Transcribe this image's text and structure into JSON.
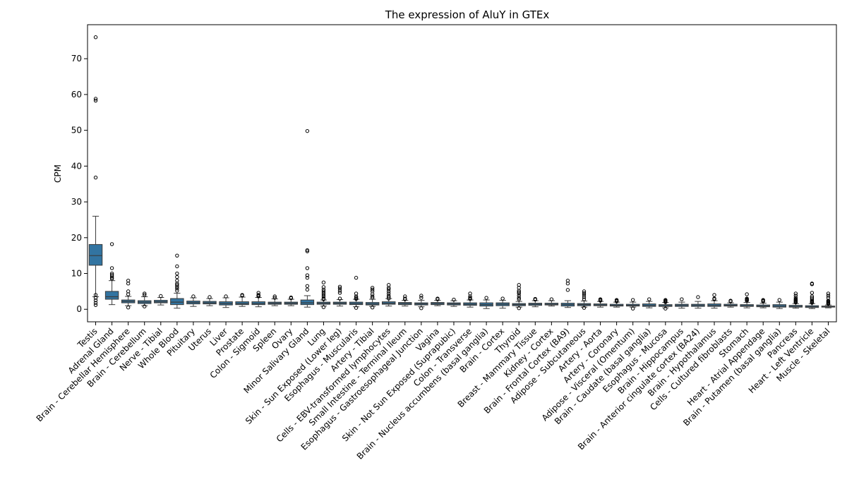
{
  "chart_data": {
    "type": "box",
    "title": "The expression of AluY in GTEx",
    "ylabel": "CPM",
    "xlabel": "",
    "ylim": [
      -3.5,
      79.5
    ],
    "yticks": [
      0,
      10,
      20,
      30,
      40,
      50,
      60,
      70
    ],
    "box_color": "#3274a1",
    "grid": false,
    "categories": [
      "Testis",
      "Adrenal Gland",
      "Brain - Cerebellar Hemisphere",
      "Brain - Cerebellum",
      "Nerve - Tibial",
      "Whole Blood",
      "Pituitary",
      "Uterus",
      "Liver",
      "Prostate",
      "Colon - Sigmoid",
      "Spleen",
      "Ovary",
      "Minor Salivary Gland",
      "Lung",
      "Skin - Sun Exposed (Lower leg)",
      "Esophagus - Muscularis",
      "Artery - Tibial",
      "Cells - EBV-transformed lymphocytes",
      "Small Intestine - Terminal Ileum",
      "Esophagus - Gastroesophageal Junction",
      "Vagina",
      "Skin - Not Sun Exposed (Suprapubic)",
      "Colon - Transverse",
      "Brain - Nucleus accumbens (basal ganglia)",
      "Brain - Cortex",
      "Thyroid",
      "Breast - Mammary Tissue",
      "Kidney - Cortex",
      "Brain - Frontal Cortex (BA9)",
      "Adipose - Subcutaneous",
      "Artery - Aorta",
      "Artery - Coronary",
      "Adipose - Visceral (Omentum)",
      "Brain - Caudate (basal ganglia)",
      "Esophagus - Mucosa",
      "Brain - Hippocampus",
      "Brain - Anterior cingulate cortex (BA24)",
      "Brain - Hypothalamus",
      "Cells - Cultured fibroblasts",
      "Stomach",
      "Heart - Atrial Appendage",
      "Brain - Putamen (basal ganglia)",
      "Pancreas",
      "Heart - Left Ventricle",
      "Muscle - Skeletal"
    ],
    "boxes": [
      {
        "whislo": 3.5,
        "q1": 12.3,
        "med": 15.0,
        "q3": 18.1,
        "whishi": 26.0,
        "fliers": [
          76.0,
          58.8,
          58.3,
          36.8,
          4.0,
          3.2,
          2.5,
          1.8,
          1.2
        ]
      },
      {
        "whislo": 1.3,
        "q1": 2.8,
        "med": 3.5,
        "q3": 5.0,
        "whishi": 8.0,
        "fliers": [
          18.2,
          11.5,
          10.0,
          9.6,
          9.2,
          8.8,
          8.5
        ]
      },
      {
        "whislo": 1.0,
        "q1": 1.8,
        "med": 2.2,
        "q3": 2.6,
        "whishi": 3.6,
        "fliers": [
          8.0,
          7.2,
          5.0,
          4.2,
          0.5
        ]
      },
      {
        "whislo": 1.0,
        "q1": 1.6,
        "med": 2.0,
        "q3": 2.4,
        "whishi": 3.5,
        "fliers": [
          4.4,
          4.0,
          0.8
        ]
      },
      {
        "whislo": 1.2,
        "q1": 1.8,
        "med": 2.1,
        "q3": 2.5,
        "whishi": 3.3,
        "fliers": [
          3.7
        ]
      },
      {
        "whislo": 0.3,
        "q1": 1.3,
        "med": 2.0,
        "q3": 3.0,
        "whishi": 4.5,
        "fliers": [
          15.0,
          12.0,
          10.0,
          9.0,
          8.0,
          7.2,
          6.8,
          6.3,
          5.8,
          5.2
        ]
      },
      {
        "whislo": 0.8,
        "q1": 1.5,
        "med": 1.9,
        "q3": 2.3,
        "whishi": 3.2,
        "fliers": [
          3.6
        ]
      },
      {
        "whislo": 1.0,
        "q1": 1.5,
        "med": 1.8,
        "q3": 2.2,
        "whishi": 3.0,
        "fliers": [
          3.4
        ]
      },
      {
        "whislo": 0.5,
        "q1": 1.2,
        "med": 1.6,
        "q3": 2.1,
        "whishi": 3.2,
        "fliers": [
          3.6
        ]
      },
      {
        "whislo": 0.8,
        "q1": 1.3,
        "med": 1.6,
        "q3": 2.1,
        "whishi": 3.4,
        "fliers": [
          4.0,
          3.8
        ]
      },
      {
        "whislo": 0.7,
        "q1": 1.3,
        "med": 1.6,
        "q3": 2.1,
        "whishi": 3.3,
        "fliers": [
          4.6,
          4.0,
          3.8,
          3.6
        ]
      },
      {
        "whislo": 1.0,
        "q1": 1.4,
        "med": 1.7,
        "q3": 2.0,
        "whishi": 2.9,
        "fliers": [
          3.6,
          3.2
        ]
      },
      {
        "whislo": 1.0,
        "q1": 1.4,
        "med": 1.7,
        "q3": 2.0,
        "whishi": 2.8,
        "fliers": [
          3.3,
          3.1
        ]
      },
      {
        "whislo": 0.6,
        "q1": 1.3,
        "med": 1.8,
        "q3": 2.6,
        "whishi": 3.8,
        "fliers": [
          49.8,
          16.5,
          16.2,
          11.5,
          9.5,
          8.8,
          6.5,
          5.5
        ]
      },
      {
        "whislo": 0.9,
        "q1": 1.4,
        "med": 1.7,
        "q3": 2.0,
        "whishi": 2.6,
        "fliers": [
          7.5,
          6.2,
          5.5,
          5.0,
          4.5,
          4.0,
          3.5,
          3.0,
          2.8,
          0.6
        ]
      },
      {
        "whislo": 0.9,
        "q1": 1.4,
        "med": 1.7,
        "q3": 2.0,
        "whishi": 2.7,
        "fliers": [
          6.3,
          5.8,
          5.2,
          4.6,
          3.0
        ]
      },
      {
        "whislo": 0.7,
        "q1": 1.3,
        "med": 1.6,
        "q3": 2.0,
        "whishi": 2.8,
        "fliers": [
          8.8,
          4.4,
          3.6,
          3.3,
          3.0,
          2.9,
          0.4
        ]
      },
      {
        "whislo": 0.8,
        "q1": 1.2,
        "med": 1.5,
        "q3": 1.9,
        "whishi": 2.8,
        "fliers": [
          6.0,
          5.5,
          5.0,
          4.2,
          3.6,
          3.2,
          0.5
        ]
      },
      {
        "whislo": 0.9,
        "q1": 1.4,
        "med": 1.7,
        "q3": 2.1,
        "whishi": 3.0,
        "fliers": [
          6.8,
          6.0,
          5.6,
          5.0,
          4.4,
          3.8,
          3.4,
          3.0
        ]
      },
      {
        "whislo": 0.9,
        "q1": 1.3,
        "med": 1.6,
        "q3": 1.9,
        "whishi": 2.5,
        "fliers": [
          3.6,
          3.0,
          2.8
        ]
      },
      {
        "whislo": 0.7,
        "q1": 1.2,
        "med": 1.5,
        "q3": 1.8,
        "whishi": 2.5,
        "fliers": [
          3.8,
          3.2,
          0.3
        ]
      },
      {
        "whislo": 1.0,
        "q1": 1.3,
        "med": 1.6,
        "q3": 1.9,
        "whishi": 2.5,
        "fliers": [
          3.0,
          2.8
        ]
      },
      {
        "whislo": 0.8,
        "q1": 1.2,
        "med": 1.5,
        "q3": 1.8,
        "whishi": 2.4,
        "fliers": [
          2.7
        ]
      },
      {
        "whislo": 0.6,
        "q1": 1.1,
        "med": 1.4,
        "q3": 1.8,
        "whishi": 2.6,
        "fliers": [
          4.4,
          3.6,
          3.2,
          3.0,
          2.9
        ]
      },
      {
        "whislo": 0.2,
        "q1": 0.9,
        "med": 1.3,
        "q3": 1.8,
        "whishi": 2.6,
        "fliers": [
          3.2
        ]
      },
      {
        "whislo": 0.3,
        "q1": 1.0,
        "med": 1.4,
        "q3": 1.8,
        "whishi": 2.5,
        "fliers": [
          3.0
        ]
      },
      {
        "whislo": 0.6,
        "q1": 1.0,
        "med": 1.3,
        "q3": 1.6,
        "whishi": 2.2,
        "fliers": [
          6.8,
          6.0,
          5.2,
          4.8,
          4.4,
          3.8,
          3.2,
          2.8,
          0.3
        ]
      },
      {
        "whislo": 0.7,
        "q1": 1.1,
        "med": 1.4,
        "q3": 1.7,
        "whishi": 2.4,
        "fliers": [
          2.9,
          2.7
        ]
      },
      {
        "whislo": 0.9,
        "q1": 1.2,
        "med": 1.4,
        "q3": 1.7,
        "whishi": 2.4,
        "fliers": [
          2.8
        ]
      },
      {
        "whislo": 0.5,
        "q1": 0.9,
        "med": 1.3,
        "q3": 1.7,
        "whishi": 2.4,
        "fliers": [
          8.0,
          7.2,
          5.4
        ]
      },
      {
        "whislo": 0.6,
        "q1": 1.0,
        "med": 1.3,
        "q3": 1.6,
        "whishi": 2.3,
        "fliers": [
          5.0,
          4.5,
          4.0,
          3.4,
          2.8,
          0.4
        ]
      },
      {
        "whislo": 0.6,
        "q1": 1.0,
        "med": 1.2,
        "q3": 1.5,
        "whishi": 2.2,
        "fliers": [
          2.8,
          2.6,
          2.4
        ]
      },
      {
        "whislo": 0.6,
        "q1": 0.9,
        "med": 1.1,
        "q3": 1.4,
        "whishi": 2.0,
        "fliers": [
          2.6,
          2.4,
          2.2
        ]
      },
      {
        "whislo": 0.6,
        "q1": 0.9,
        "med": 1.1,
        "q3": 1.4,
        "whishi": 2.0,
        "fliers": [
          2.6,
          0.2
        ]
      },
      {
        "whislo": 0.4,
        "q1": 0.8,
        "med": 1.1,
        "q3": 1.5,
        "whishi": 2.2,
        "fliers": [
          2.8
        ]
      },
      {
        "whislo": 0.4,
        "q1": 0.8,
        "med": 1.0,
        "q3": 1.3,
        "whishi": 1.9,
        "fliers": [
          2.6,
          2.4,
          2.2,
          2.0,
          0.2
        ]
      },
      {
        "whislo": 0.3,
        "q1": 0.8,
        "med": 1.1,
        "q3": 1.4,
        "whishi": 2.0,
        "fliers": [
          2.8
        ]
      },
      {
        "whislo": 0.3,
        "q1": 0.8,
        "med": 1.1,
        "q3": 1.4,
        "whishi": 2.2,
        "fliers": [
          3.4
        ]
      },
      {
        "whislo": 0.3,
        "q1": 0.8,
        "med": 1.1,
        "q3": 1.5,
        "whishi": 2.4,
        "fliers": [
          4.0,
          3.0,
          2.8
        ]
      },
      {
        "whislo": 0.6,
        "q1": 0.9,
        "med": 1.1,
        "q3": 1.4,
        "whishi": 1.8,
        "fliers": [
          2.4,
          2.2
        ]
      },
      {
        "whislo": 0.4,
        "q1": 0.8,
        "med": 1.0,
        "q3": 1.3,
        "whishi": 1.9,
        "fliers": [
          4.2,
          3.0,
          2.8,
          2.6,
          2.4
        ]
      },
      {
        "whislo": 0.4,
        "q1": 0.7,
        "med": 0.9,
        "q3": 1.2,
        "whishi": 1.7,
        "fliers": [
          2.6,
          2.4,
          2.2
        ]
      },
      {
        "whislo": 0.2,
        "q1": 0.6,
        "med": 0.9,
        "q3": 1.3,
        "whishi": 2.0,
        "fliers": [
          2.6
        ]
      },
      {
        "whislo": 0.3,
        "q1": 0.6,
        "med": 0.8,
        "q3": 1.1,
        "whishi": 1.6,
        "fliers": [
          4.4,
          3.8,
          3.2,
          2.8,
          2.6,
          2.4,
          2.2,
          2.0,
          1.9
        ]
      },
      {
        "whislo": 0.2,
        "q1": 0.5,
        "med": 0.7,
        "q3": 1.0,
        "whishi": 1.6,
        "fliers": [
          7.2,
          7.0,
          4.6,
          3.6,
          3.2,
          2.8,
          2.4,
          2.2,
          2.0,
          1.8
        ]
      },
      {
        "whislo": 0.4,
        "q1": 0.6,
        "med": 0.7,
        "q3": 0.9,
        "whishi": 1.2,
        "fliers": [
          4.4,
          3.8,
          3.2,
          2.4,
          2.2,
          2.0,
          1.8,
          1.6,
          1.5
        ]
      }
    ]
  }
}
